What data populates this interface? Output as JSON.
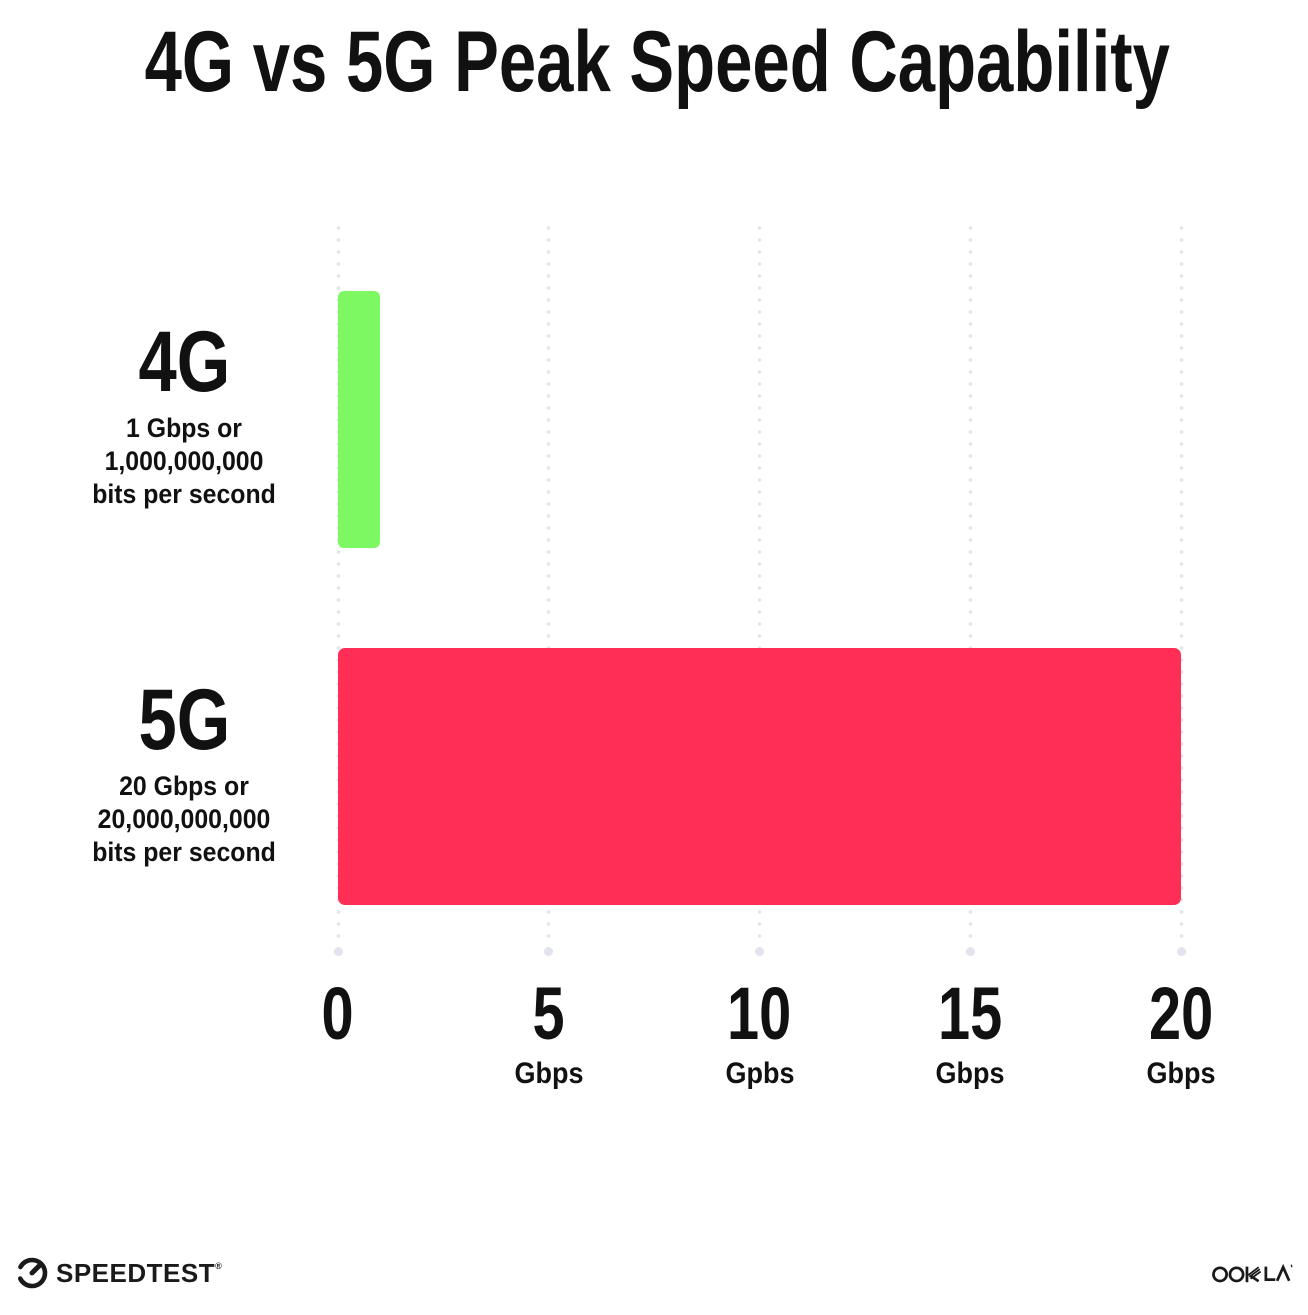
{
  "title": "4G vs 5G Peak Speed Capability",
  "chart_data": {
    "type": "bar",
    "orientation": "horizontal",
    "title": "4G vs 5G Peak Speed Capability",
    "categories": [
      "4G",
      "5G"
    ],
    "values": [
      1,
      20
    ],
    "value_unit": "Gbps",
    "xlim": [
      0,
      20
    ],
    "bar_colors": [
      "#7DF862",
      "#FE2E56"
    ],
    "grid": "vertical-dotted",
    "legend": "none",
    "row_labels": [
      {
        "heading": "4G",
        "lines": [
          "1 Gbps or",
          "1,000,000,000",
          "bits per second"
        ]
      },
      {
        "heading": "5G",
        "lines": [
          "20 Gbps or",
          "20,000,000,000",
          "bits per second"
        ]
      }
    ],
    "x_ticks": [
      {
        "value": "0",
        "unit": ""
      },
      {
        "value": "5",
        "unit": "Gbps"
      },
      {
        "value": "10",
        "unit": "Gpbs"
      },
      {
        "value": "15",
        "unit": "Gbps"
      },
      {
        "value": "20",
        "unit": "Gbps"
      }
    ]
  },
  "footer": {
    "speedtest_logo_text": "SPEEDTEST",
    "speedtest_trademark": "®",
    "ookla_logo_text": "OOKLA"
  },
  "colors": {
    "bar_4g": "#7DF862",
    "bar_5g": "#FE2E56",
    "grid_dot": "#E1E3ED",
    "text": "#111111",
    "background": "#FFFFFF"
  }
}
